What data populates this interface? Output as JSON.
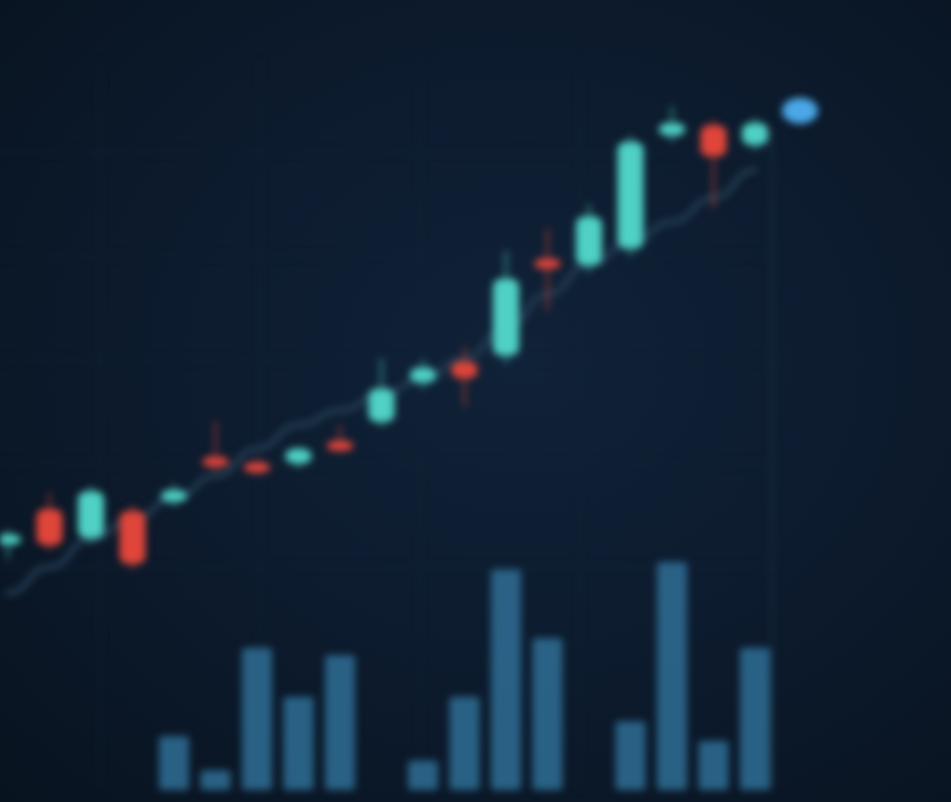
{
  "chart_data": {
    "type": "candlestick",
    "title": "",
    "xlabel": "",
    "ylabel": "",
    "ylim": [
      52,
      106
    ],
    "volume_max": 100,
    "grid": true,
    "colors": {
      "background": "#0b1728",
      "up": "#4fd1c5",
      "down": "#e0453a",
      "volume": "#2f6f95",
      "moving_average": "#223a50",
      "grid": "#14263a",
      "axis_line": "#1c3246",
      "last_price_marker": "#4aa8e8"
    },
    "candles": [
      {
        "open": 62.2,
        "high": 63.6,
        "low": 60.8,
        "close": 63.1
      },
      {
        "open": 65.6,
        "high": 67.2,
        "low": 61.6,
        "close": 62.1
      },
      {
        "open": 62.8,
        "high": 67.8,
        "low": 62.3,
        "close": 67.3
      },
      {
        "open": 65.4,
        "high": 66.0,
        "low": 59.8,
        "close": 60.3
      },
      {
        "open": 66.3,
        "high": 68.0,
        "low": 65.8,
        "close": 67.4
      },
      {
        "open": 70.5,
        "high": 74.1,
        "low": 69.2,
        "close": 69.8
      },
      {
        "open": 70.0,
        "high": 70.5,
        "low": 68.9,
        "close": 69.2
      },
      {
        "open": 70.0,
        "high": 71.6,
        "low": 69.5,
        "close": 71.4
      },
      {
        "open": 72.0,
        "high": 73.7,
        "low": 71.1,
        "close": 71.4
      },
      {
        "open": 74.0,
        "high": 80.1,
        "low": 73.5,
        "close": 77.2
      },
      {
        "open": 77.8,
        "high": 80.0,
        "low": 77.2,
        "close": 79.2
      },
      {
        "open": 79.8,
        "high": 81.2,
        "low": 75.5,
        "close": 78.2
      },
      {
        "open": 80.4,
        "high": 90.5,
        "low": 79.6,
        "close": 87.8
      },
      {
        "open": 89.7,
        "high": 92.6,
        "low": 84.7,
        "close": 88.8
      },
      {
        "open": 89.1,
        "high": 95.0,
        "low": 88.4,
        "close": 93.8
      },
      {
        "open": 90.7,
        "high": 101.6,
        "low": 90.0,
        "close": 101.0
      },
      {
        "open": 101.6,
        "high": 104.4,
        "low": 101.0,
        "close": 102.8
      },
      {
        "open": 102.6,
        "high": 103.1,
        "low": 94.6,
        "close": 99.6
      },
      {
        "open": 100.7,
        "high": 103.3,
        "low": 100.2,
        "close": 102.8
      }
    ],
    "volume": [
      0,
      0,
      0,
      0,
      22,
      8,
      58,
      38,
      55,
      0,
      12,
      38,
      90,
      62,
      0,
      28,
      93,
      20,
      58
    ],
    "moving_average": [
      57.5,
      60.0,
      62.7,
      64.6,
      66.6,
      68.8,
      71.4,
      73.7,
      75.1,
      76.6,
      78.1,
      80.1,
      83.0,
      86.3,
      89.2,
      91.3,
      93.3,
      95.6,
      98.3
    ],
    "last_price": 104.0
  }
}
